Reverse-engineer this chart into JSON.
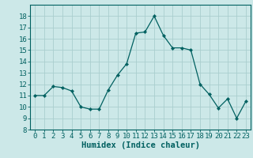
{
  "x": [
    0,
    1,
    2,
    3,
    4,
    5,
    6,
    7,
    8,
    9,
    10,
    11,
    12,
    13,
    14,
    15,
    16,
    17,
    18,
    19,
    20,
    21,
    22,
    23
  ],
  "y": [
    11.0,
    11.0,
    11.8,
    11.7,
    11.4,
    10.0,
    9.8,
    9.8,
    11.5,
    12.8,
    13.8,
    16.5,
    16.6,
    18.0,
    16.3,
    15.2,
    15.2,
    15.0,
    12.0,
    11.1,
    9.9,
    10.7,
    9.0,
    10.5
  ],
  "line_color": "#006060",
  "marker": "D",
  "marker_size": 2.2,
  "bg_color": "#cce8e8",
  "grid_color": "#aacece",
  "xlabel": "Humidex (Indice chaleur)",
  "xlim": [
    -0.5,
    23.5
  ],
  "ylim": [
    8,
    19
  ],
  "yticks": [
    8,
    9,
    10,
    11,
    12,
    13,
    14,
    15,
    16,
    17,
    18
  ],
  "xticks": [
    0,
    1,
    2,
    3,
    4,
    5,
    6,
    7,
    8,
    9,
    10,
    11,
    12,
    13,
    14,
    15,
    16,
    17,
    18,
    19,
    20,
    21,
    22,
    23
  ],
  "tick_color": "#006060",
  "label_color": "#006060",
  "axis_color": "#006060",
  "xlabel_fontsize": 7.5,
  "tick_fontsize": 6.5
}
